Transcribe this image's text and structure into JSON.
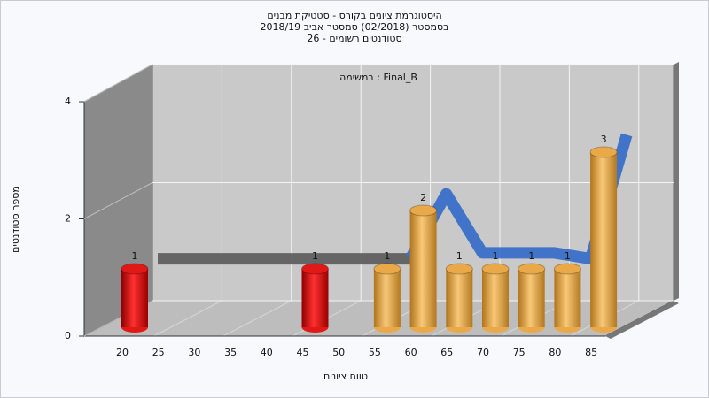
{
  "chart_data": {
    "type": "bar",
    "title_lines": [
      "היסטוגרמת ציונים בקורס - סטטיקת מבנים",
      "בסמסטר  (02/2018)  סמסטר אביב 2018/19",
      "סטודנטים רשומים - 26"
    ],
    "annotation": "במשימה : Final_B",
    "x_label": "טווח ציונים",
    "y_label": "מספר סטודנטים",
    "categories": [
      "20",
      "25",
      "30",
      "35",
      "40",
      "45",
      "50",
      "55",
      "60",
      "65",
      "70",
      "75",
      "80",
      "85"
    ],
    "values": [
      1,
      null,
      null,
      null,
      null,
      1,
      null,
      1,
      2,
      1,
      1,
      1,
      1,
      3
    ],
    "colors": [
      "#e01818",
      null,
      null,
      null,
      null,
      "#e01818",
      null,
      "#eaa948",
      "#eaa948",
      "#eaa948",
      "#eaa948",
      "#eaa948",
      "#eaa948",
      "#eaa948"
    ],
    "lines": [
      {
        "color": "#606060",
        "values": [
          0.8,
          0.8,
          0.8,
          0.8,
          0.8,
          0.8,
          0.8,
          0.8,
          null,
          null,
          null,
          null,
          null,
          null
        ]
      },
      {
        "color": "#3a70c8",
        "values": [
          null,
          null,
          null,
          null,
          null,
          null,
          null,
          0.8,
          1.9,
          0.9,
          0.9,
          0.9,
          0.8,
          2.9
        ]
      }
    ],
    "ylim": [
      0,
      4
    ],
    "yticks": [
      0,
      2,
      4
    ],
    "grid": true
  }
}
